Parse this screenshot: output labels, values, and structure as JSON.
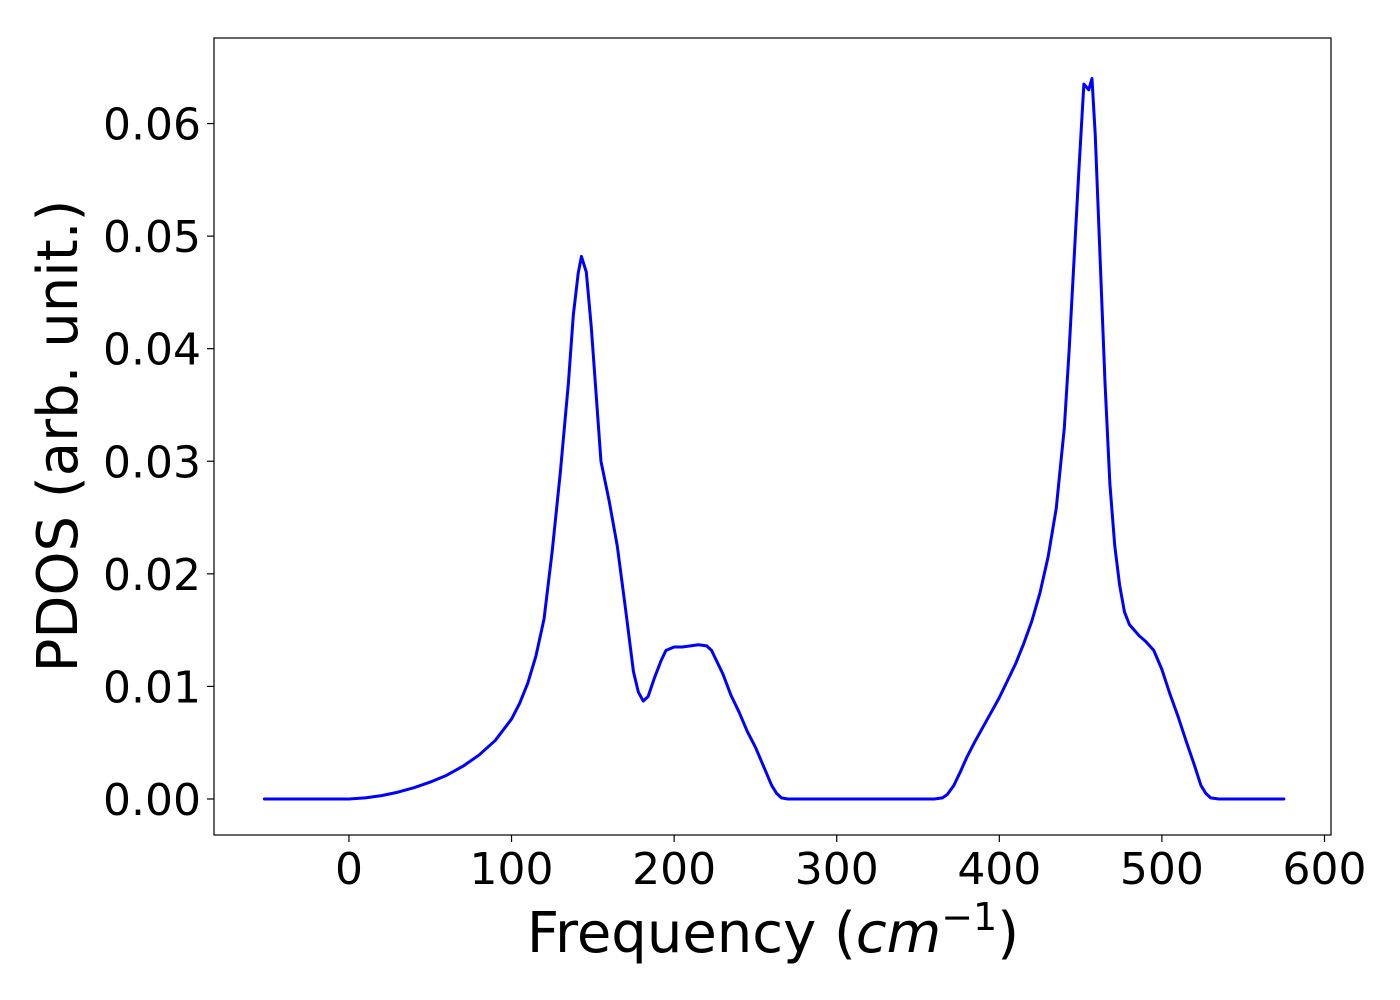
{
  "chart_data": {
    "type": "line",
    "title": "",
    "xlabel": {
      "text_prefix": "Frequency (",
      "math_base": "cm",
      "math_superscript": "−1",
      "text_suffix": ")"
    },
    "ylabel": "PDOS (arb. unit.)",
    "xlim": [
      -83,
      604
    ],
    "ylim": [
      -0.0032,
      0.0676
    ],
    "xticks": [
      0,
      100,
      200,
      300,
      400,
      500,
      600
    ],
    "xtick_labels": [
      "0",
      "100",
      "200",
      "300",
      "400",
      "500",
      "600"
    ],
    "yticks": [
      0.0,
      0.01,
      0.02,
      0.03,
      0.04,
      0.05,
      0.06
    ],
    "ytick_labels": [
      "0.00",
      "0.01",
      "0.02",
      "0.03",
      "0.04",
      "0.05",
      "0.06"
    ],
    "grid": false,
    "legend": null,
    "series": [
      {
        "color": "#0000ff",
        "x": [
          -52,
          0,
          10,
          20,
          30,
          40,
          50,
          60,
          70,
          80,
          90,
          100,
          105,
          110,
          115,
          120,
          125,
          130,
          135,
          138,
          141,
          143,
          146,
          149,
          152,
          155,
          160,
          165,
          170,
          175,
          178,
          181,
          184,
          188,
          192,
          195,
          200,
          205,
          210,
          215,
          220,
          223,
          226,
          230,
          235,
          240,
          245,
          250,
          255,
          260,
          263,
          266,
          270,
          280,
          300,
          320,
          340,
          360,
          365,
          368,
          372,
          376,
          380,
          385,
          390,
          395,
          400,
          405,
          410,
          415,
          420,
          425,
          430,
          435,
          440,
          443,
          446,
          449,
          452,
          455,
          457,
          459,
          462,
          465,
          468,
          471,
          474,
          477,
          480,
          483,
          486,
          490,
          495,
          500,
          505,
          510,
          515,
          520,
          524,
          527,
          530,
          535,
          540,
          575
        ],
        "y": [
          0.0,
          0.0,
          0.0001,
          0.0003,
          0.0006,
          0.001,
          0.0015,
          0.0021,
          0.0029,
          0.0039,
          0.0052,
          0.0071,
          0.0085,
          0.0103,
          0.0127,
          0.016,
          0.022,
          0.029,
          0.037,
          0.043,
          0.0467,
          0.0482,
          0.0468,
          0.042,
          0.036,
          0.03,
          0.0265,
          0.0225,
          0.017,
          0.0113,
          0.0095,
          0.0087,
          0.0091,
          0.0108,
          0.0123,
          0.0132,
          0.0135,
          0.0135,
          0.0136,
          0.0137,
          0.0136,
          0.0132,
          0.0123,
          0.0111,
          0.0092,
          0.0077,
          0.006,
          0.0046,
          0.0029,
          0.0012,
          0.0005,
          0.0001,
          0.0,
          0.0,
          0.0,
          0.0,
          0.0,
          0.0,
          0.0001,
          0.0004,
          0.0012,
          0.0024,
          0.0037,
          0.0051,
          0.0064,
          0.0077,
          0.009,
          0.0105,
          0.012,
          0.0138,
          0.0158,
          0.0183,
          0.0215,
          0.0258,
          0.033,
          0.04,
          0.048,
          0.056,
          0.0635,
          0.063,
          0.064,
          0.059,
          0.048,
          0.037,
          0.028,
          0.0225,
          0.019,
          0.0166,
          0.0155,
          0.015,
          0.0145,
          0.014,
          0.0132,
          0.0115,
          0.0093,
          0.0073,
          0.0051,
          0.003,
          0.0012,
          0.0005,
          0.0001,
          0.0,
          0.0,
          0.0
        ]
      }
    ]
  }
}
